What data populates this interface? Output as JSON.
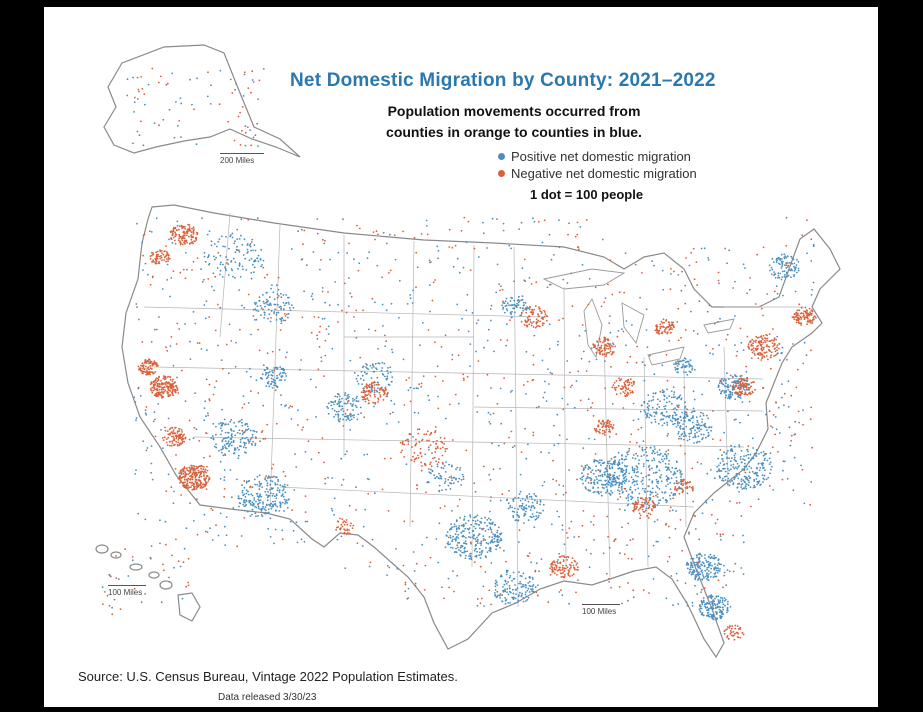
{
  "map": {
    "title": "Net Domestic Migration by County: 2021–2022",
    "subtitle_line1": "Population movements occurred from",
    "subtitle_line2": "counties in orange to counties in blue.",
    "legend": {
      "positive": {
        "label": "Positive net domestic migration",
        "color": "#4a8fbf"
      },
      "negative": {
        "label": "Negative net domestic migration",
        "color": "#d9603b"
      }
    },
    "dot_scale": "1 dot = 100 people",
    "scale_alaska": "200 Miles",
    "scale_hawaii": "100 Miles",
    "scale_conus": "100 Miles",
    "source": "Source: U.S. Census Bureau, Vintage 2022 Population Estimates.",
    "released": "Data released 3/30/23"
  },
  "colors": {
    "positive": "#4a8fbf",
    "negative": "#d9603b",
    "boundary": "#8a8a8a",
    "title": "#2a78b0"
  }
}
